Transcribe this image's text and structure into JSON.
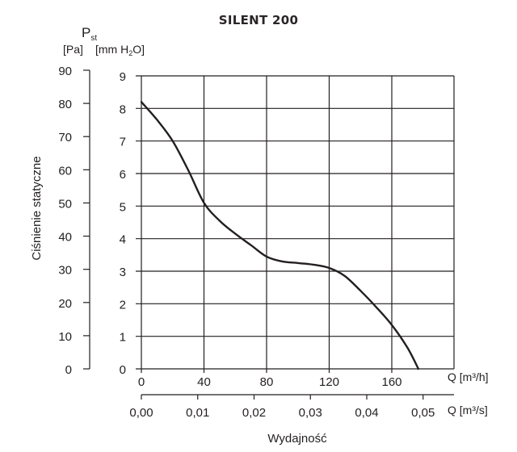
{
  "chart_data": {
    "type": "line",
    "title": "SILENT 200",
    "ylabel": "Ciśnienie statyczne",
    "ylabel_symbol": "P",
    "ylabel_symbol_sub": "st",
    "y_unit_left": "[Pa]",
    "y_unit_right_prefix": "[mm H",
    "y_unit_right_sub": "2",
    "y_unit_right_suffix": "O]",
    "xlabel": "Wydajność",
    "x_unit_top": "Q [m³/h]",
    "x_unit_bottom": "Q [m³/s]",
    "pa_ticks": [
      "90",
      "80",
      "70",
      "60",
      "50",
      "40",
      "30",
      "20",
      "10",
      "0"
    ],
    "mm_ticks": [
      "9",
      "8",
      "7",
      "6",
      "5",
      "4",
      "3",
      "2",
      "1",
      "0"
    ],
    "x_ticks_m3h": [
      "0",
      "40",
      "80",
      "120",
      "160"
    ],
    "x_ticks_m3s": [
      "0,00",
      "0,01",
      "0,02",
      "0,03",
      "0,04",
      "0,05"
    ],
    "xlim_m3h": [
      0,
      195
    ],
    "ylim_mmH2O": [
      0,
      9
    ],
    "ylim_Pa": [
      0,
      90
    ],
    "grid": true,
    "series": [
      {
        "name": "SILENT 200",
        "x_m3h": [
          0,
          10,
          20,
          30,
          40,
          50,
          60,
          70,
          80,
          90,
          100,
          110,
          120,
          130,
          140,
          150,
          160,
          170,
          177
        ],
        "y_mmH2O": [
          8.2,
          7.65,
          7.0,
          6.1,
          5.1,
          4.55,
          4.15,
          3.8,
          3.45,
          3.3,
          3.25,
          3.2,
          3.1,
          2.85,
          2.4,
          1.9,
          1.35,
          0.65,
          0.0
        ]
      }
    ]
  }
}
